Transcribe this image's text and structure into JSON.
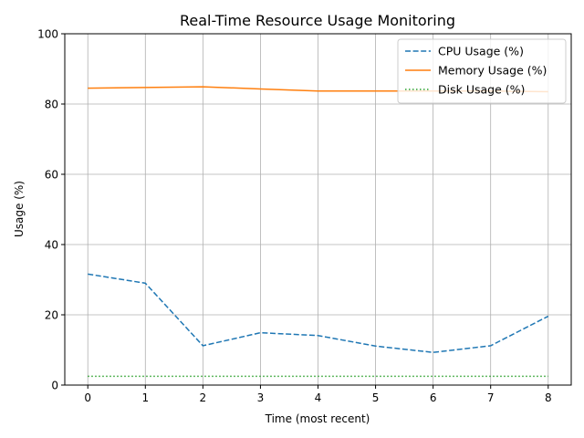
{
  "chart_data": {
    "type": "line",
    "title": "Real-Time Resource Usage Monitoring",
    "xlabel": "Time (most recent)",
    "ylabel": "Usage (%)",
    "x": [
      0,
      1,
      2,
      3,
      4,
      5,
      6,
      7,
      8
    ],
    "xlim": [
      -0.4,
      8.4
    ],
    "ylim": [
      0,
      100
    ],
    "xticks": [
      "0",
      "1",
      "2",
      "3",
      "4",
      "5",
      "6",
      "7",
      "8"
    ],
    "yticks": [
      "0",
      "20",
      "40",
      "60",
      "80",
      "100"
    ],
    "grid": true,
    "legend_position": "top-right",
    "series": [
      {
        "name": "CPU Usage (%)",
        "color": "#1f77b4",
        "style": "dashed",
        "values": [
          31.6,
          29.0,
          11.2,
          14.9,
          14.1,
          11.1,
          9.3,
          11.2,
          19.6
        ]
      },
      {
        "name": "Memory Usage (%)",
        "color": "#ff7f0e",
        "style": "solid",
        "values": [
          84.5,
          84.7,
          84.9,
          84.3,
          83.7,
          83.7,
          83.7,
          83.7,
          83.5
        ]
      },
      {
        "name": "Disk Usage (%)",
        "color": "#2ca02c",
        "style": "dotted",
        "values": [
          2.5,
          2.5,
          2.5,
          2.5,
          2.5,
          2.5,
          2.5,
          2.5,
          2.5
        ]
      }
    ]
  }
}
